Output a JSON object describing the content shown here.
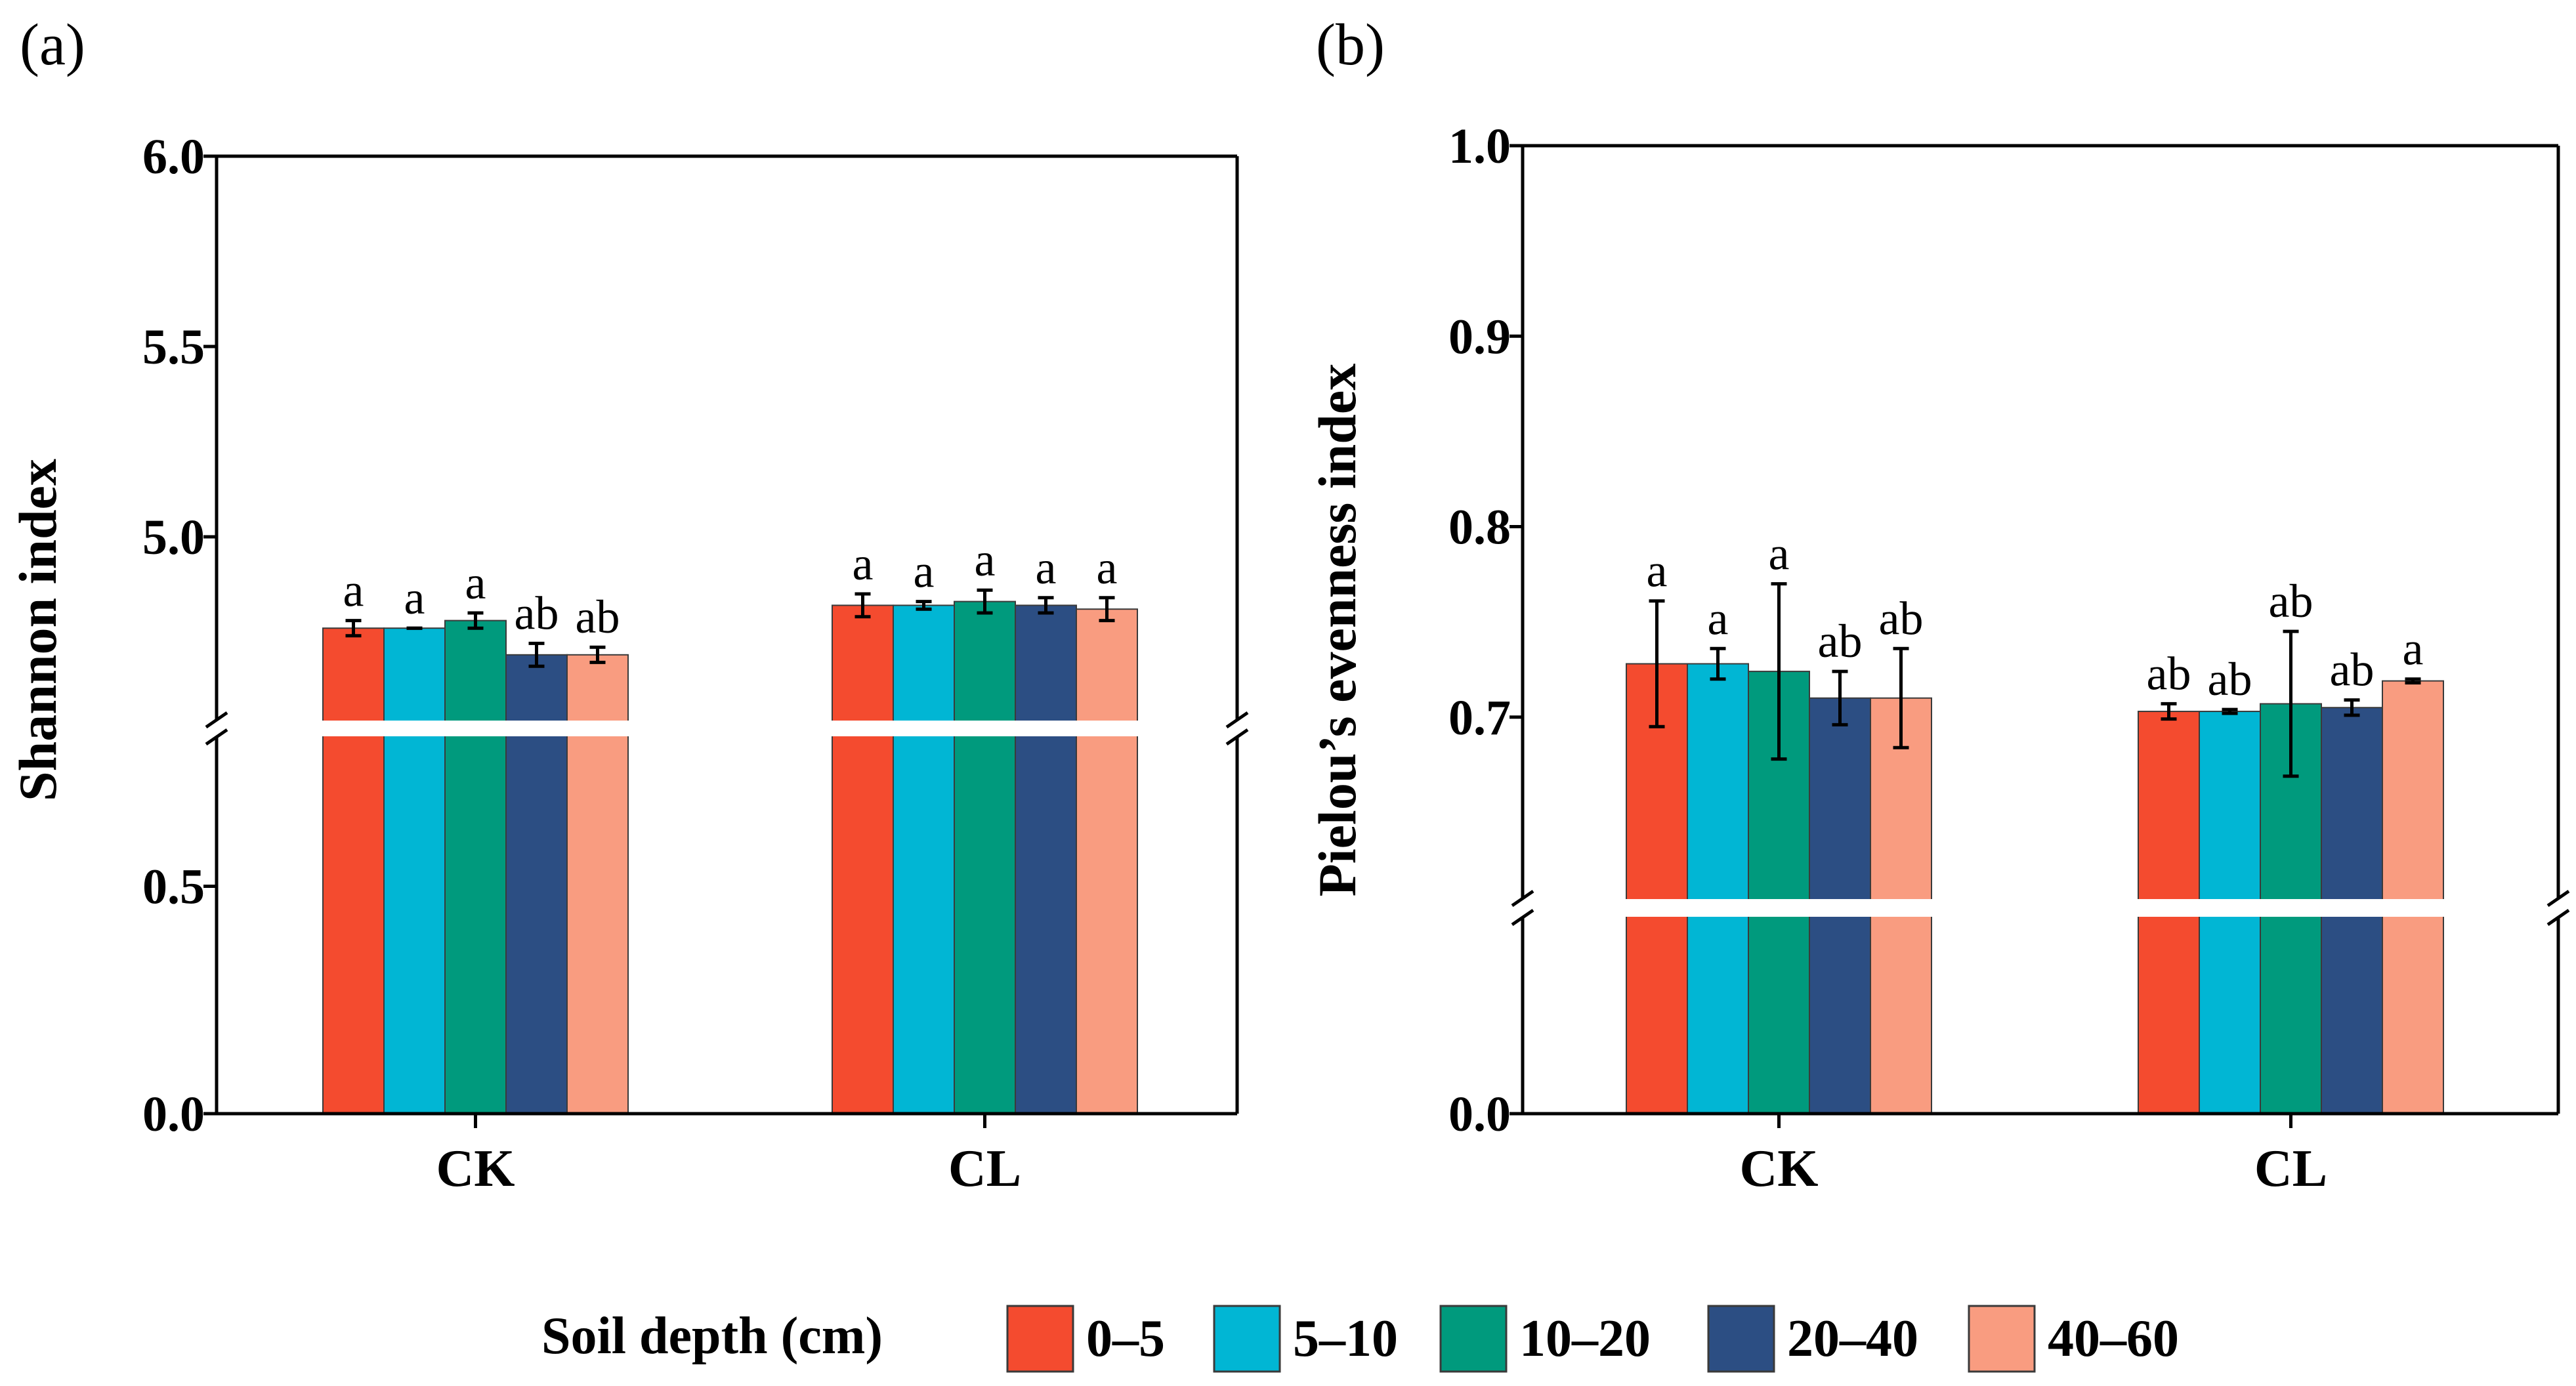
{
  "chart_data": [
    {
      "type": "bar",
      "panel_label": "(a)",
      "ylabel": "Shannon index",
      "categories": [
        "CK",
        "CL"
      ],
      "ytick_labels_upper": [
        "5.0",
        "5.5",
        "6.0"
      ],
      "ytick_labels_lower": [
        "0.0",
        "0.5"
      ],
      "ylim_lower": [
        0.0,
        0.85
      ],
      "ylim_upper": [
        4.5,
        6.0
      ],
      "axis_break": true,
      "series": [
        {
          "name": "0–5",
          "values": [
            4.76,
            4.82
          ],
          "errors": [
            0.02,
            0.03
          ],
          "letters": [
            "a",
            "a"
          ]
        },
        {
          "name": "5–10",
          "values": [
            4.76,
            4.82
          ],
          "errors": [
            0.0,
            0.01
          ],
          "letters": [
            "a",
            "a"
          ]
        },
        {
          "name": "10–20",
          "values": [
            4.78,
            4.83
          ],
          "errors": [
            0.02,
            0.03
          ],
          "letters": [
            "a",
            "a"
          ]
        },
        {
          "name": "20–40",
          "values": [
            4.69,
            4.82
          ],
          "errors": [
            0.03,
            0.02
          ],
          "letters": [
            "ab",
            "a"
          ]
        },
        {
          "name": "40–60",
          "values": [
            4.69,
            4.81
          ],
          "errors": [
            0.02,
            0.03
          ],
          "letters": [
            "ab",
            "a"
          ]
        }
      ]
    },
    {
      "type": "bar",
      "panel_label": "(b)",
      "ylabel": "Pielou’s evenness index",
      "categories": [
        "CK",
        "CL"
      ],
      "ytick_labels_upper": [
        "0.7",
        "0.8",
        "0.9",
        "1.0"
      ],
      "ytick_labels_lower": [
        "0.0"
      ],
      "ylim_lower": [
        0.0,
        0.55
      ],
      "ylim_upper": [
        0.6,
        1.0
      ],
      "axis_break": true,
      "series": [
        {
          "name": "0–5",
          "values": [
            0.728,
            0.703
          ],
          "errors": [
            0.033,
            0.004
          ],
          "letters": [
            "a",
            "ab"
          ]
        },
        {
          "name": "5–10",
          "values": [
            0.728,
            0.703
          ],
          "errors": [
            0.008,
            0.001
          ],
          "letters": [
            "a",
            "ab"
          ]
        },
        {
          "name": "10–20",
          "values": [
            0.724,
            0.707
          ],
          "errors": [
            0.046,
            0.038
          ],
          "letters": [
            "a",
            "ab"
          ]
        },
        {
          "name": "20–40",
          "values": [
            0.71,
            0.705
          ],
          "errors": [
            0.014,
            0.004
          ],
          "letters": [
            "ab",
            "ab"
          ]
        },
        {
          "name": "40–60",
          "values": [
            0.71,
            0.719
          ],
          "errors": [
            0.026,
            0.001
          ],
          "letters": [
            "ab",
            "a"
          ]
        }
      ]
    }
  ],
  "legend": {
    "title": "Soil depth (cm)",
    "items": [
      "0–5",
      "5–10",
      "10–20",
      "20–40",
      "40–60"
    ]
  },
  "colors": [
    "#f44b2f",
    "#01b6d4",
    "#009a7d",
    "#2c4e83",
    "#f99c80"
  ]
}
